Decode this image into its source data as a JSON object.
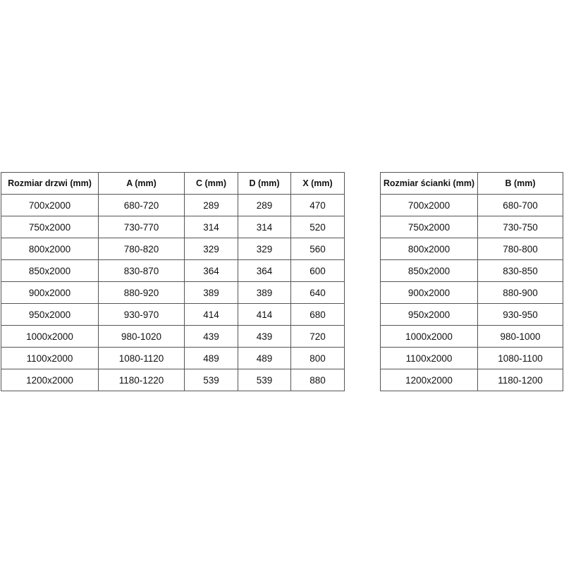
{
  "doors_table": {
    "headers": [
      "Rozmiar drzwi (mm)",
      "A (mm)",
      "C (mm)",
      "D (mm)",
      "X (mm)"
    ],
    "rows": [
      [
        "700x2000",
        "680-720",
        "289",
        "289",
        "470"
      ],
      [
        "750x2000",
        "730-770",
        "314",
        "314",
        "520"
      ],
      [
        "800x2000",
        "780-820",
        "329",
        "329",
        "560"
      ],
      [
        "850x2000",
        "830-870",
        "364",
        "364",
        "600"
      ],
      [
        "900x2000",
        "880-920",
        "389",
        "389",
        "640"
      ],
      [
        "950x2000",
        "930-970",
        "414",
        "414",
        "680"
      ],
      [
        "1000x2000",
        "980-1020",
        "439",
        "439",
        "720"
      ],
      [
        "1100x2000",
        "1080-1120",
        "489",
        "489",
        "800"
      ],
      [
        "1200x2000",
        "1180-1220",
        "539",
        "539",
        "880"
      ]
    ]
  },
  "wall_table": {
    "headers": [
      "Rozmiar ścianki (mm)",
      "B (mm)"
    ],
    "rows": [
      [
        "700x2000",
        "680-700"
      ],
      [
        "750x2000",
        "730-750"
      ],
      [
        "800x2000",
        "780-800"
      ],
      [
        "850x2000",
        "830-850"
      ],
      [
        "900x2000",
        "880-900"
      ],
      [
        "950x2000",
        "930-950"
      ],
      [
        "1000x2000",
        "980-1000"
      ],
      [
        "1100x2000",
        "1080-1100"
      ],
      [
        "1200x2000",
        "1180-1200"
      ]
    ]
  }
}
